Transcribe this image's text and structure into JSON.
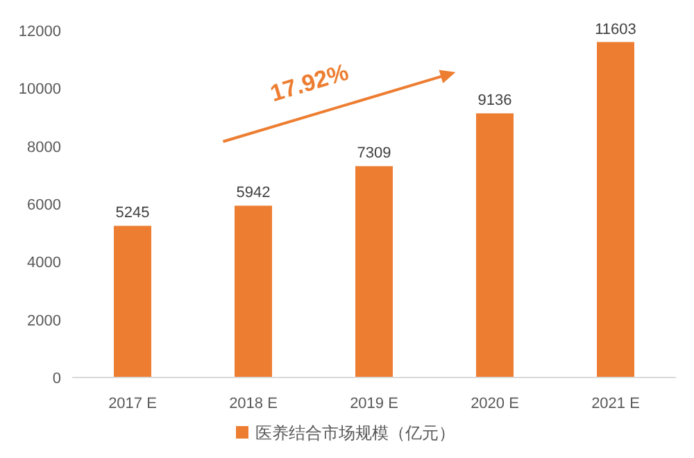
{
  "chart_data": {
    "type": "bar",
    "categories": [
      "2017 E",
      "2018 E",
      "2019 E",
      "2020 E",
      "2021 E"
    ],
    "series": [
      {
        "name": "医养结合市场规模（亿元）",
        "color": "#ed7d31",
        "values": [
          5245,
          5942,
          7309,
          9136,
          11603
        ]
      }
    ],
    "ylim": [
      0,
      12000
    ],
    "yticks": [
      0,
      2000,
      4000,
      6000,
      8000,
      10000,
      12000
    ],
    "data_labels": true,
    "legend": "bottom",
    "grid": false,
    "annotations": [
      "17.92%"
    ]
  }
}
